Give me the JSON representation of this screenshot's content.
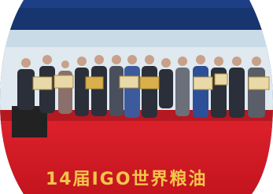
{
  "stage_text": "14届IGO世界粮油"
}
